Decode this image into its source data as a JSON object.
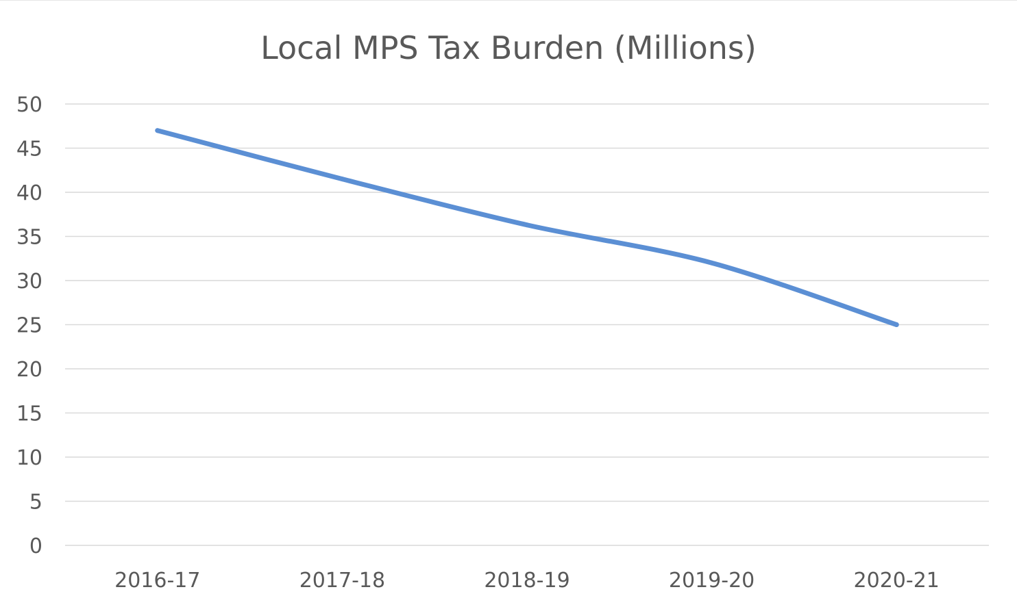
{
  "chart_data": {
    "type": "line",
    "title": "Local MPS Tax Burden (Millions)",
    "xlabel": "",
    "ylabel": "",
    "categories": [
      "2016-17",
      "2017-18",
      "2018-19",
      "2019-20",
      "2020-21"
    ],
    "series": [
      {
        "values": [
          47,
          41.5,
          36.3,
          32,
          25
        ],
        "color": "#5b8fd4"
      }
    ],
    "ylim": [
      0,
      50
    ],
    "yticks": [
      "0",
      "5",
      "10",
      "15",
      "20",
      "25",
      "30",
      "35",
      "40",
      "45",
      "50"
    ],
    "grid": true,
    "legend": "none"
  }
}
